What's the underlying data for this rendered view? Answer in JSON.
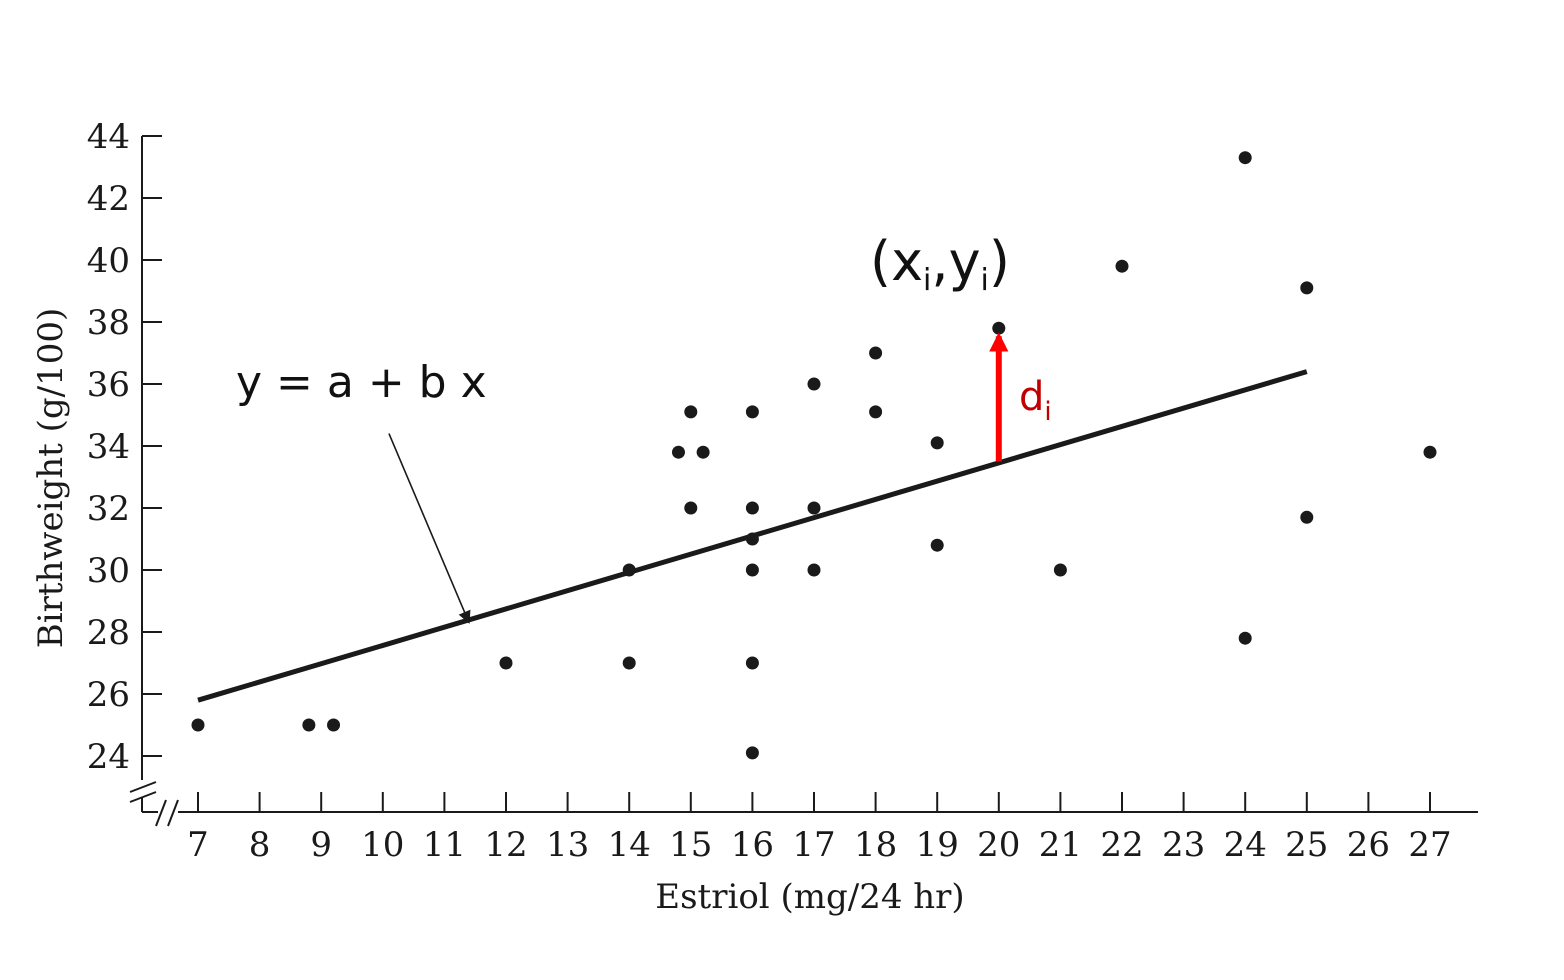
{
  "chart_data": {
    "type": "scatter",
    "title": "",
    "xlabel": "Estriol (mg/24 hr)",
    "ylabel": "Birthweight (g/100)",
    "xlim": [
      6.5,
      27.8
    ],
    "ylim": [
      22.2,
      44.3
    ],
    "x_ticks": [
      7,
      8,
      9,
      10,
      11,
      12,
      13,
      14,
      15,
      16,
      17,
      18,
      19,
      20,
      21,
      22,
      23,
      24,
      25,
      26,
      27
    ],
    "x_tick_labels": [
      "7",
      "8",
      "9",
      "10",
      "11",
      "12",
      "13",
      "14",
      "15",
      "16",
      "17",
      "18",
      "19",
      "20",
      "21",
      "22",
      "23",
      "24",
      "25",
      "26",
      "27"
    ],
    "y_ticks": [
      24,
      26,
      28,
      30,
      32,
      34,
      36,
      38,
      40,
      42,
      44
    ],
    "y_tick_labels": [
      "24",
      "26",
      "28",
      "30",
      "32",
      "34",
      "36",
      "38",
      "40",
      "42",
      "44"
    ],
    "axis_breaks": true,
    "grid": false,
    "point_color": "#1a1a1a",
    "points": [
      {
        "x": 7,
        "y": 25
      },
      {
        "x": 8.8,
        "y": 25
      },
      {
        "x": 9.2,
        "y": 25
      },
      {
        "x": 12,
        "y": 27
      },
      {
        "x": 14,
        "y": 27
      },
      {
        "x": 14,
        "y": 30
      },
      {
        "x": 14.8,
        "y": 33.8
      },
      {
        "x": 15,
        "y": 35.1
      },
      {
        "x": 15,
        "y": 32
      },
      {
        "x": 15.2,
        "y": 33.8
      },
      {
        "x": 16,
        "y": 35.1
      },
      {
        "x": 16,
        "y": 32
      },
      {
        "x": 16,
        "y": 31
      },
      {
        "x": 16,
        "y": 30
      },
      {
        "x": 16,
        "y": 27
      },
      {
        "x": 16,
        "y": 24.1
      },
      {
        "x": 17,
        "y": 36
      },
      {
        "x": 17,
        "y": 32
      },
      {
        "x": 17,
        "y": 30
      },
      {
        "x": 18,
        "y": 37
      },
      {
        "x": 18,
        "y": 35.1
      },
      {
        "x": 19,
        "y": 34.1
      },
      {
        "x": 19,
        "y": 30.8
      },
      {
        "x": 20,
        "y": 37.8
      },
      {
        "x": 21,
        "y": 30
      },
      {
        "x": 22,
        "y": 39.8
      },
      {
        "x": 24,
        "y": 43.3
      },
      {
        "x": 24,
        "y": 27.8
      },
      {
        "x": 25,
        "y": 39.1
      },
      {
        "x": 25,
        "y": 31.7
      },
      {
        "x": 27,
        "y": 33.8
      }
    ],
    "fit_line": {
      "x1": 7,
      "y1": 25.8,
      "x2": 25,
      "y2": 36.4,
      "color": "#1a1a1a"
    },
    "annotations": {
      "equation": "y = a + b x",
      "point_label_x": "x",
      "point_label_y": "y",
      "point_label_sub": "i",
      "residual_label": "d",
      "residual_label_sub": "i",
      "residual_color": "#ff0000",
      "residual_label_color": "#c00000",
      "residual": {
        "x": 20,
        "y_from": 33.5,
        "y_to": 37.8
      },
      "equation_arrow": {
        "x_from": 10.1,
        "y_from": 34.4,
        "x_to": 11.4,
        "y_to": 28.3
      }
    }
  }
}
